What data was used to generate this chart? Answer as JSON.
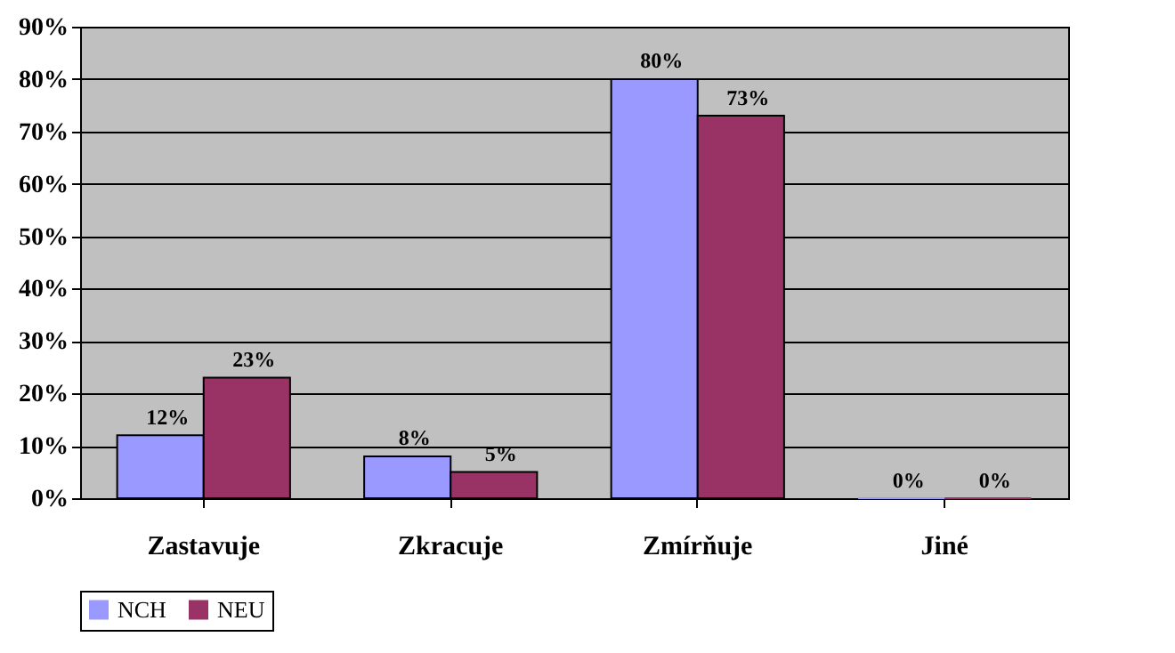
{
  "chart_data": {
    "type": "bar",
    "categories": [
      "Zastavuje",
      "Zkracuje",
      "Zmírňuje",
      "Jiné"
    ],
    "series": [
      {
        "name": "NCH",
        "color": "#9999ff",
        "values": [
          12,
          8,
          80,
          0
        ],
        "value_labels": [
          "12%",
          "8%",
          "80%",
          "0%"
        ]
      },
      {
        "name": "NEU",
        "color": "#993366",
        "values": [
          23,
          5,
          73,
          0
        ],
        "value_labels": [
          "23%",
          "5%",
          "73%",
          "0%"
        ]
      }
    ],
    "ylim": [
      0,
      90
    ],
    "yticks": [
      {
        "value": 0,
        "label": "0%"
      },
      {
        "value": 10,
        "label": "10%"
      },
      {
        "value": 20,
        "label": "20%"
      },
      {
        "value": 30,
        "label": "30%"
      },
      {
        "value": 40,
        "label": "40%"
      },
      {
        "value": 50,
        "label": "50%"
      },
      {
        "value": 60,
        "label": "60%"
      },
      {
        "value": 70,
        "label": "70%"
      },
      {
        "value": 80,
        "label": "80%"
      },
      {
        "value": 90,
        "label": "90%"
      }
    ],
    "grid": "y",
    "legend": "bottom"
  }
}
